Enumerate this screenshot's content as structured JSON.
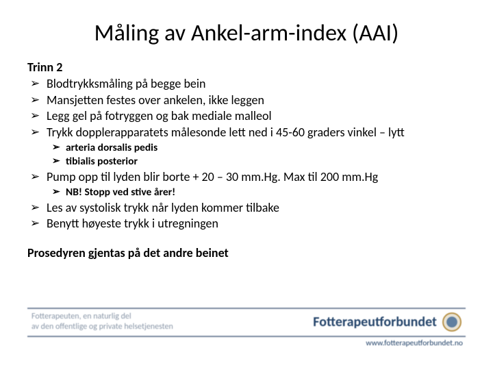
{
  "title": "Måling av Ankel-arm-index (AAI)",
  "subtitle": "Trinn 2",
  "items": [
    {
      "text": "Blodtrykksmåling på begge bein"
    },
    {
      "text": "Mansjetten festes over ankelen, ikke leggen"
    },
    {
      "text": "Legg gel på fotryggen og bak mediale malleol"
    },
    {
      "text": "Trykk dopplerapparatets målesonde lett ned i 45-60 graders vinkel – lytt",
      "sub": [
        "arteria dorsalis pedis",
        "tibialis posterior"
      ]
    },
    {
      "text": "Pump opp til lyden blir borte + 20 – 30 mm.Hg. Max til 200 mm.Hg",
      "sub": [
        "NB! Stopp ved stive årer!"
      ]
    },
    {
      "text": "Les av systolisk trykk når lyden kommer tilbake"
    },
    {
      "text": "Benytt høyeste trykk i utregningen"
    }
  ],
  "footnote": "Prosedyren gjentas på det andre beinet",
  "footer": {
    "tagline_line1": "Fotterapeuten, en naturlig del",
    "tagline_line2": "av den offentlige og private helsetjenesten",
    "brand": "Fotterapeutforbundet",
    "url": "www.fotterapeutforbundet.no"
  },
  "colors": {
    "text": "#000000",
    "background": "#ffffff",
    "footer_border": "#7b8aa0",
    "footer_text": "#8a97a8",
    "brand_text": "#24446a"
  }
}
